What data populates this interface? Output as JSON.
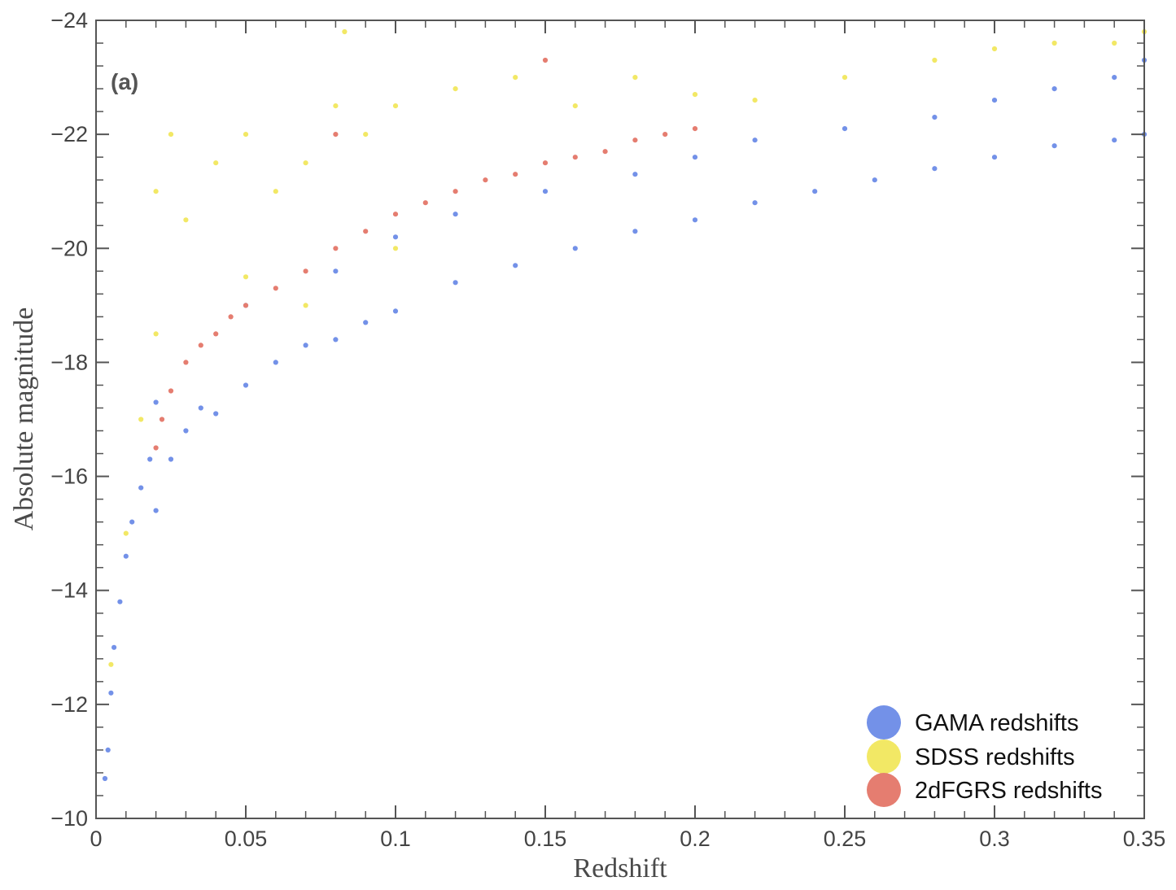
{
  "chart_data": {
    "type": "scatter",
    "panel_label": "(a)",
    "xlabel": "Redshift",
    "ylabel": "Absolute magnitude",
    "xlim": [
      0,
      0.35
    ],
    "ylim": [
      -10,
      -24
    ],
    "y_inverted": true,
    "x_ticks": [
      {
        "value": 0,
        "label": "0"
      },
      {
        "value": 0.05,
        "label": "0.05"
      },
      {
        "value": 0.1,
        "label": "0.1"
      },
      {
        "value": 0.15,
        "label": "0.15"
      },
      {
        "value": 0.2,
        "label": "0.2"
      },
      {
        "value": 0.25,
        "label": "0.25"
      },
      {
        "value": 0.3,
        "label": "0.3"
      },
      {
        "value": 0.35,
        "label": "0.35"
      }
    ],
    "y_ticks": [
      {
        "value": -10,
        "label": "−10"
      },
      {
        "value": -12,
        "label": "−12"
      },
      {
        "value": -14,
        "label": "−14"
      },
      {
        "value": -16,
        "label": "−16"
      },
      {
        "value": -18,
        "label": "−18"
      },
      {
        "value": -20,
        "label": "−20"
      },
      {
        "value": -22,
        "label": "−22"
      },
      {
        "value": -24,
        "label": "−24"
      }
    ],
    "legend_position": "bottom-right",
    "series": [
      {
        "name": "GAMA redshifts",
        "color": "#7391e8",
        "x_range": [
          0.003,
          0.35
        ],
        "points": [
          [
            0.003,
            -10.7
          ],
          [
            0.004,
            -11.2
          ],
          [
            0.005,
            -12.2
          ],
          [
            0.006,
            -13.0
          ],
          [
            0.008,
            -13.8
          ],
          [
            0.01,
            -14.6
          ],
          [
            0.012,
            -15.2
          ],
          [
            0.015,
            -15.8
          ],
          [
            0.018,
            -16.3
          ],
          [
            0.02,
            -15.4
          ],
          [
            0.02,
            -17.3
          ],
          [
            0.025,
            -16.3
          ],
          [
            0.03,
            -16.8
          ],
          [
            0.035,
            -17.2
          ],
          [
            0.04,
            -17.1
          ],
          [
            0.05,
            -17.6
          ],
          [
            0.06,
            -18.0
          ],
          [
            0.07,
            -18.3
          ],
          [
            0.08,
            -18.4
          ],
          [
            0.09,
            -18.7
          ],
          [
            0.1,
            -18.9
          ],
          [
            0.12,
            -19.4
          ],
          [
            0.14,
            -19.7
          ],
          [
            0.16,
            -20.0
          ],
          [
            0.18,
            -20.3
          ],
          [
            0.2,
            -20.5
          ],
          [
            0.22,
            -20.8
          ],
          [
            0.24,
            -21.0
          ],
          [
            0.26,
            -21.2
          ],
          [
            0.28,
            -21.4
          ],
          [
            0.3,
            -21.6
          ],
          [
            0.32,
            -21.8
          ],
          [
            0.34,
            -21.9
          ],
          [
            0.35,
            -22.0
          ],
          [
            0.05,
            -19.0
          ],
          [
            0.08,
            -19.6
          ],
          [
            0.1,
            -20.2
          ],
          [
            0.12,
            -20.6
          ],
          [
            0.15,
            -21.0
          ],
          [
            0.18,
            -21.3
          ],
          [
            0.2,
            -21.6
          ],
          [
            0.22,
            -21.9
          ],
          [
            0.25,
            -22.1
          ],
          [
            0.28,
            -22.3
          ],
          [
            0.3,
            -22.6
          ],
          [
            0.32,
            -22.8
          ],
          [
            0.34,
            -23.0
          ],
          [
            0.35,
            -23.3
          ]
        ]
      },
      {
        "name": "SDSS redshifts",
        "color": "#f2e865",
        "x_range": [
          0.005,
          0.35
        ],
        "points": [
          [
            0.005,
            -12.7
          ],
          [
            0.01,
            -15.0
          ],
          [
            0.015,
            -17.0
          ],
          [
            0.02,
            -18.5
          ],
          [
            0.02,
            -21.0
          ],
          [
            0.025,
            -22.0
          ],
          [
            0.03,
            -20.5
          ],
          [
            0.04,
            -21.5
          ],
          [
            0.05,
            -22.0
          ],
          [
            0.06,
            -21.0
          ],
          [
            0.07,
            -21.5
          ],
          [
            0.08,
            -22.5
          ],
          [
            0.09,
            -22.0
          ],
          [
            0.1,
            -22.5
          ],
          [
            0.12,
            -22.8
          ],
          [
            0.14,
            -23.0
          ],
          [
            0.16,
            -22.5
          ],
          [
            0.18,
            -23.0
          ],
          [
            0.2,
            -22.7
          ],
          [
            0.22,
            -22.6
          ],
          [
            0.25,
            -23.0
          ],
          [
            0.28,
            -23.3
          ],
          [
            0.3,
            -23.5
          ],
          [
            0.32,
            -23.6
          ],
          [
            0.34,
            -23.6
          ],
          [
            0.35,
            -23.8
          ],
          [
            0.083,
            -23.8
          ],
          [
            0.05,
            -19.5
          ],
          [
            0.07,
            -19.0
          ],
          [
            0.1,
            -20.0
          ]
        ]
      },
      {
        "name": "2dFGRS redshifts",
        "color": "#e57d70",
        "x_range": [
          0.02,
          0.2
        ],
        "points": [
          [
            0.02,
            -16.5
          ],
          [
            0.022,
            -17.0
          ],
          [
            0.025,
            -17.5
          ],
          [
            0.03,
            -18.0
          ],
          [
            0.035,
            -18.3
          ],
          [
            0.04,
            -18.5
          ],
          [
            0.045,
            -18.8
          ],
          [
            0.05,
            -19.0
          ],
          [
            0.06,
            -19.3
          ],
          [
            0.07,
            -19.6
          ],
          [
            0.08,
            -20.0
          ],
          [
            0.09,
            -20.3
          ],
          [
            0.1,
            -20.6
          ],
          [
            0.11,
            -20.8
          ],
          [
            0.12,
            -21.0
          ],
          [
            0.13,
            -21.2
          ],
          [
            0.14,
            -21.3
          ],
          [
            0.15,
            -21.5
          ],
          [
            0.16,
            -21.6
          ],
          [
            0.17,
            -21.7
          ],
          [
            0.18,
            -21.9
          ],
          [
            0.19,
            -22.0
          ],
          [
            0.2,
            -22.1
          ],
          [
            0.08,
            -22.0
          ],
          [
            0.15,
            -23.3
          ]
        ]
      }
    ]
  }
}
